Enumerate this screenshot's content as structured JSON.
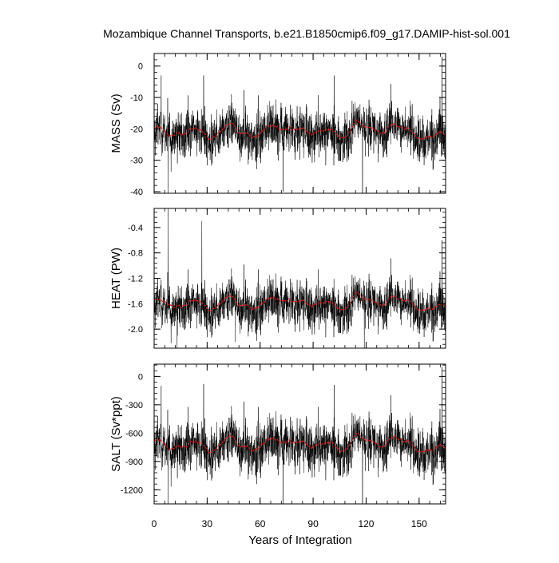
{
  "chart_data": {
    "type": "line",
    "title": "Mozambique Channel Transports, b.e21.B1850cmip6.f09_g17.DAMIP-hist-sol.001",
    "xlabel": "Years of Integration",
    "x_range": [
      0,
      165
    ],
    "x_ticks": [
      0,
      30,
      60,
      90,
      120,
      150
    ],
    "x_tick_labels": [
      "0",
      "30",
      "60",
      "90",
      "120",
      "150"
    ],
    "colors": {
      "raw": "#000000",
      "smoothed": "#e31a1c"
    },
    "panels": [
      {
        "id": "mass",
        "ylabel": "MASS (Sv)",
        "ylim": [
          -40.5,
          4
        ],
        "y_ticks": [
          0,
          -10,
          -20,
          -30,
          -40
        ],
        "y_tick_labels": [
          "0",
          "-10",
          "-20",
          "-30",
          "-40"
        ],
        "mean": -21,
        "spread": 4.6,
        "smooth_mean": -20.5,
        "extremes": [
          [
            4,
            -3
          ],
          [
            8,
            -42
          ],
          [
            28,
            -3
          ],
          [
            73,
            -40
          ],
          [
            102,
            -3
          ],
          [
            118,
            -41
          ],
          [
            163,
            3
          ],
          [
            165,
            -40
          ]
        ]
      },
      {
        "id": "heat",
        "ylabel": "HEAT (PW)",
        "ylim": [
          -2.3,
          -0.1
        ],
        "y_ticks": [
          -0.4,
          -0.8,
          -1.2,
          -1.6,
          -2.0
        ],
        "y_tick_labels": [
          "-0.4",
          "-0.8",
          "-1.2",
          "-1.6",
          "-2.0"
        ],
        "mean": -1.62,
        "spread": 0.22,
        "smooth_mean": -1.58,
        "extremes": [
          [
            8,
            -0.1
          ],
          [
            27,
            -0.3
          ],
          [
            13,
            -2.3
          ],
          [
            46,
            -2.2
          ],
          [
            119,
            -2.3
          ],
          [
            163,
            -0.6
          ]
        ]
      },
      {
        "id": "salt",
        "ylabel": "SALT (Sv*ppt)",
        "ylim": [
          -1350,
          130
        ],
        "y_ticks": [
          0,
          -300,
          -600,
          -900,
          -1200
        ],
        "y_tick_labels": [
          "0",
          "-300",
          "-600",
          "-900",
          "-1200"
        ],
        "mean": -730,
        "spread": 160,
        "smooth_mean": -710,
        "extremes": [
          [
            4,
            -100
          ],
          [
            8,
            -1430
          ],
          [
            28,
            -80
          ],
          [
            73,
            -1380
          ],
          [
            102,
            -90
          ],
          [
            118,
            -1400
          ],
          [
            163,
            100
          ],
          [
            165,
            -1400
          ]
        ]
      }
    ]
  }
}
